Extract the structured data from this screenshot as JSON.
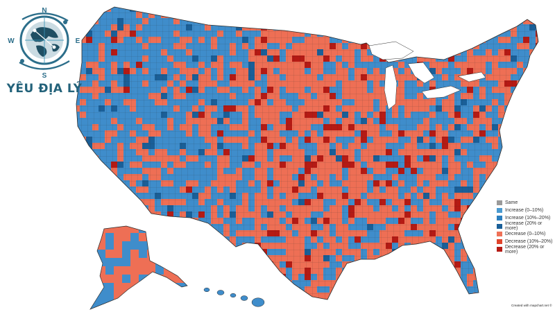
{
  "logo": {
    "text": "YÊU ĐỊA LÝ",
    "compass_letters": [
      "N",
      "S",
      "E",
      "W"
    ],
    "icon": "globe-compass-icon",
    "colors": {
      "ring": "#2c6e8a",
      "land": "#1f4f63",
      "accent": "#3a95b6"
    }
  },
  "legend": {
    "items": [
      {
        "label": "Same",
        "color": "#9a9a9a"
      },
      {
        "label": "Increase (0–10%)",
        "color": "#4a9ad0"
      },
      {
        "label": "Increase (10%–20%)",
        "color": "#2b7fbf"
      },
      {
        "label": "Increase (20% or more)",
        "color": "#1a5f98"
      },
      {
        "label": "Decrease (0–10%)",
        "color": "#ef7157"
      },
      {
        "label": "Decrease (10%–20%)",
        "color": "#e0432b"
      },
      {
        "label": "Decrease (20% or more)",
        "color": "#b51a14"
      }
    ]
  },
  "credit": "Created with mapchart.net ©",
  "map": {
    "subject": "US counties choropleth",
    "dominant_colors": {
      "blue": "#3f8dcb",
      "red": "#ee6f55",
      "border": "#2a2a2a"
    }
  }
}
